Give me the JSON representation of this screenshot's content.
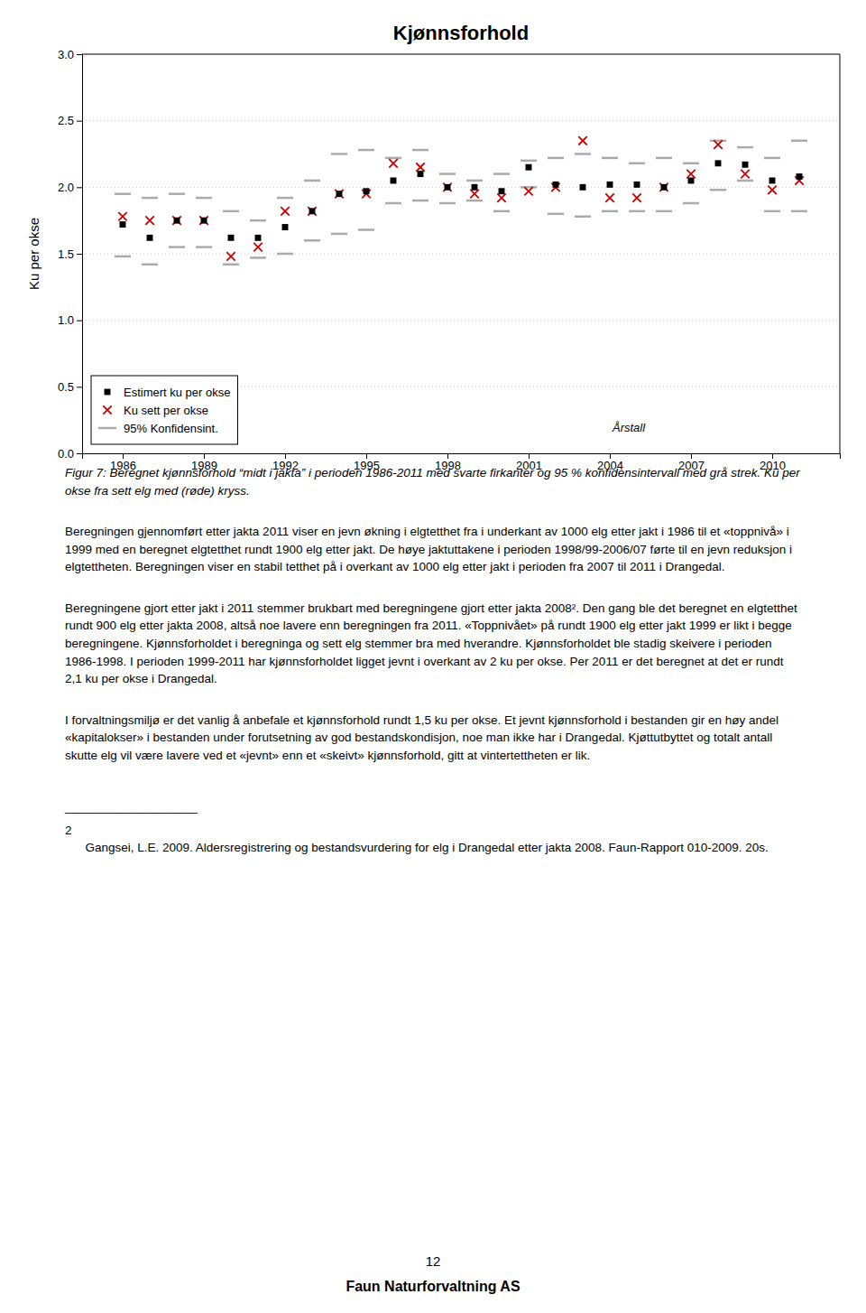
{
  "chart_data": {
    "type": "scatter",
    "title": "Kjønnsforhold",
    "ylabel": "Ku per okse",
    "xlabel": "Årstall",
    "x": [
      1986,
      1987,
      1988,
      1989,
      1990,
      1991,
      1992,
      1993,
      1994,
      1995,
      1996,
      1997,
      1998,
      1999,
      2000,
      2001,
      2002,
      2003,
      2004,
      2005,
      2006,
      2007,
      2008,
      2009,
      2010,
      2011
    ],
    "series": [
      {
        "name": "Estimert ku per okse",
        "color": "#000000",
        "marker": "square",
        "values": [
          1.72,
          1.62,
          1.75,
          1.75,
          1.62,
          1.62,
          1.7,
          1.82,
          1.95,
          1.97,
          2.05,
          2.1,
          2.0,
          2.0,
          1.97,
          2.15,
          2.02,
          2.0,
          2.02,
          2.02,
          2.0,
          2.05,
          2.18,
          2.17,
          2.05,
          2.08
        ]
      },
      {
        "name": "Ku sett per okse",
        "color": "#cc0000",
        "marker": "x",
        "values": [
          1.78,
          1.75,
          1.75,
          1.75,
          1.48,
          1.55,
          1.82,
          1.82,
          1.95,
          1.95,
          2.18,
          2.15,
          2.0,
          1.95,
          1.92,
          1.97,
          2.0,
          2.35,
          1.92,
          1.92,
          2.0,
          2.1,
          2.32,
          2.1,
          1.98,
          2.05
        ]
      },
      {
        "name": "95% Konfidensint.",
        "color": "#aaaaaa",
        "type": "interval",
        "marker": "dash",
        "upper": [
          1.95,
          1.92,
          1.95,
          1.92,
          1.82,
          1.75,
          1.92,
          2.05,
          2.25,
          2.28,
          2.22,
          2.28,
          2.1,
          2.05,
          2.1,
          2.2,
          2.22,
          2.25,
          2.22,
          2.18,
          2.22,
          2.18,
          2.35,
          2.3,
          2.22,
          2.35
        ],
        "lower": [
          1.48,
          1.42,
          1.55,
          1.55,
          1.42,
          1.47,
          1.5,
          1.6,
          1.65,
          1.68,
          1.88,
          1.9,
          1.88,
          1.9,
          1.82,
          2.0,
          1.8,
          1.78,
          1.82,
          1.82,
          1.82,
          1.88,
          1.98,
          2.05,
          1.82,
          1.82
        ]
      }
    ],
    "xlim": [
      1984.5,
      2012.5
    ],
    "xticks": [
      1986,
      1989,
      1992,
      1995,
      1998,
      2001,
      2004,
      2007,
      2010
    ],
    "ylim": [
      0.0,
      3.0
    ],
    "yticks": [
      {
        "value": 0.0,
        "label": "0.0"
      },
      0.5,
      {
        "value": 1.0,
        "label": "1.0"
      },
      1.5,
      {
        "value": 2.0,
        "label": "2.0"
      },
      2.5,
      {
        "value": 3.0,
        "label": "3.0"
      }
    ],
    "grid": true,
    "legend": "lower left"
  },
  "caption": "Figur 7: Beregnet kjønnsforhold “midt i jakta” i perioden 1986-2011 med svarte firkanter og 95 % konfidensintervall med grå strek. Ku per okse fra sett elg med (røde) kryss.",
  "paragraphs": [
    "Beregningen gjennomført etter jakta 2011 viser en jevn økning i elgtetthet fra i underkant av 1000 elg etter jakt i 1986 til et «toppnivå» i 1999 med en beregnet elgtetthet rundt 1900 elg etter jakt. De høye jaktuttakene i perioden 1998/99-2006/07 førte til en jevn reduksjon i elgtettheten. Beregningen viser en stabil tetthet på i overkant av 1000 elg etter jakt i perioden fra 2007 til 2011 i Drangedal.",
    "Beregningene gjort etter jakt i 2011 stemmer brukbart med beregningene gjort etter jakta 2008². Den gang ble det beregnet en elgtetthet rundt 900 elg etter jakta 2008, altså noe lavere enn beregningen fra 2011. «Toppnivået» på rundt 1900 elg etter jakt 1999 er likt i begge beregningene. Kjønnsforholdet i beregninga og sett elg stemmer bra med hverandre. Kjønnsforholdet ble stadig skeivere i perioden 1986-1998. I perioden 1999-2011 har kjønnsforholdet ligget jevnt i overkant av 2 ku per okse. Per 2011 er det beregnet at det er rundt 2,1 ku per okse i Drangedal.",
    "I forvaltningsmiljø er det vanlig å anbefale et kjønnsforhold rundt 1,5 ku per okse. Et jevnt kjønnsforhold i bestanden gir en høy andel «kapitalokser» i bestanden under forutsetning av god bestandskondisjon, noe man ikke har i Drangedal. Kjøttutbyttet og totalt antall skutte elg vil være lavere ved et «jevnt» enn et «skeivt» kjønnsforhold, gitt at vintertettheten er lik."
  ],
  "footnote_separator": "______________________",
  "footnote_num": "2",
  "footnote_ref": "      Gangsei, L.E. 2009. Aldersregistrering og bestandsvurdering for elg i Drangedal etter jakta 2008. Faun-Rapport 010-2009. 20s.",
  "page_num": "12",
  "footer": "Faun Naturforvaltning AS"
}
